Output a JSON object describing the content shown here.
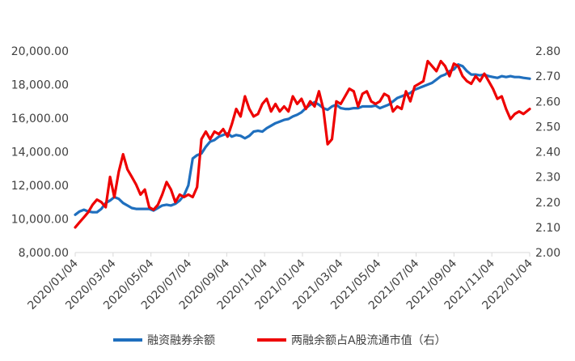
{
  "chart_data": {
    "type": "line",
    "title": "",
    "left_axis": {
      "ylim": [
        8000,
        20000
      ],
      "ticks": [
        8000,
        10000,
        12000,
        14000,
        16000,
        18000,
        20000
      ],
      "tick_labels": [
        "8,000.00",
        "10,000.00",
        "12,000.00",
        "14,000.00",
        "16,000.00",
        "18,000.00",
        "20,000.00"
      ]
    },
    "right_axis": {
      "ylim": [
        2.0,
        2.8
      ],
      "ticks": [
        2.0,
        2.1,
        2.2,
        2.3,
        2.4,
        2.5,
        2.6,
        2.7,
        2.8
      ],
      "tick_labels": [
        "2.00",
        "2.10",
        "2.20",
        "2.30",
        "2.40",
        "2.50",
        "2.60",
        "2.70",
        "2.80"
      ]
    },
    "x_axis": {
      "range": [
        "2020-01-04",
        "2022-01-04"
      ],
      "tick_labels": [
        "2020/01/04",
        "2020/03/04",
        "2020/05/04",
        "2020/07/04",
        "2020/09/04",
        "2020/11/04",
        "2021/01/04",
        "2021/03/04",
        "2021/05/04",
        "2021/07/04",
        "2021/09/04",
        "2021/11/04",
        "2022/01/04"
      ]
    },
    "legend": {
      "placement": "bottom"
    },
    "grid": false,
    "series": [
      {
        "name": "融资融券余额",
        "axis": "left",
        "color": "#1f6fbe",
        "points": [
          [
            "2020-01-04",
            10250
          ],
          [
            "2020-01-11",
            10450
          ],
          [
            "2020-01-18",
            10550
          ],
          [
            "2020-01-25",
            10450
          ],
          [
            "2020-02-01",
            10400
          ],
          [
            "2020-02-08",
            10400
          ],
          [
            "2020-02-15",
            10600
          ],
          [
            "2020-02-22",
            10950
          ],
          [
            "2020-02-29",
            11100
          ],
          [
            "2020-03-07",
            11300
          ],
          [
            "2020-03-14",
            11200
          ],
          [
            "2020-03-21",
            10950
          ],
          [
            "2020-03-28",
            10800
          ],
          [
            "2020-04-04",
            10650
          ],
          [
            "2020-04-11",
            10600
          ],
          [
            "2020-04-18",
            10600
          ],
          [
            "2020-04-25",
            10600
          ],
          [
            "2020-05-02",
            10600
          ],
          [
            "2020-05-09",
            10500
          ],
          [
            "2020-05-16",
            10650
          ],
          [
            "2020-05-23",
            10800
          ],
          [
            "2020-05-30",
            10850
          ],
          [
            "2020-06-06",
            10800
          ],
          [
            "2020-06-13",
            10900
          ],
          [
            "2020-06-20",
            11100
          ],
          [
            "2020-06-27",
            11400
          ],
          [
            "2020-07-04",
            12000
          ],
          [
            "2020-07-11",
            13600
          ],
          [
            "2020-07-18",
            13800
          ],
          [
            "2020-07-25",
            13900
          ],
          [
            "2020-08-01",
            14300
          ],
          [
            "2020-08-08",
            14600
          ],
          [
            "2020-08-15",
            14700
          ],
          [
            "2020-08-22",
            14900
          ],
          [
            "2020-08-29",
            15000
          ],
          [
            "2020-09-05",
            15100
          ],
          [
            "2020-09-12",
            14900
          ],
          [
            "2020-09-19",
            15000
          ],
          [
            "2020-09-26",
            14950
          ],
          [
            "2020-10-03",
            14800
          ],
          [
            "2020-10-10",
            14950
          ],
          [
            "2020-10-17",
            15200
          ],
          [
            "2020-10-24",
            15250
          ],
          [
            "2020-10-31",
            15200
          ],
          [
            "2020-11-07",
            15400
          ],
          [
            "2020-11-14",
            15550
          ],
          [
            "2020-11-21",
            15700
          ],
          [
            "2020-11-28",
            15800
          ],
          [
            "2020-12-05",
            15900
          ],
          [
            "2020-12-12",
            15950
          ],
          [
            "2020-12-19",
            16100
          ],
          [
            "2020-12-26",
            16200
          ],
          [
            "2021-01-02",
            16350
          ],
          [
            "2021-01-09",
            16600
          ],
          [
            "2021-01-16",
            16800
          ],
          [
            "2021-01-23",
            16950
          ],
          [
            "2021-01-30",
            16800
          ],
          [
            "2021-02-06",
            16600
          ],
          [
            "2021-02-13",
            16500
          ],
          [
            "2021-02-20",
            16700
          ],
          [
            "2021-02-27",
            16800
          ],
          [
            "2021-03-06",
            16600
          ],
          [
            "2021-03-13",
            16550
          ],
          [
            "2021-03-20",
            16550
          ],
          [
            "2021-03-27",
            16600
          ],
          [
            "2021-04-03",
            16600
          ],
          [
            "2021-04-10",
            16700
          ],
          [
            "2021-04-17",
            16700
          ],
          [
            "2021-04-24",
            16700
          ],
          [
            "2021-05-01",
            16750
          ],
          [
            "2021-05-08",
            16600
          ],
          [
            "2021-05-15",
            16700
          ],
          [
            "2021-05-22",
            16800
          ],
          [
            "2021-05-29",
            17000
          ],
          [
            "2021-06-05",
            17200
          ],
          [
            "2021-06-12",
            17300
          ],
          [
            "2021-06-19",
            17400
          ],
          [
            "2021-06-26",
            17500
          ],
          [
            "2021-07-03",
            17700
          ],
          [
            "2021-07-10",
            17800
          ],
          [
            "2021-07-17",
            17900
          ],
          [
            "2021-07-24",
            18000
          ],
          [
            "2021-07-31",
            18100
          ],
          [
            "2021-08-07",
            18300
          ],
          [
            "2021-08-14",
            18500
          ],
          [
            "2021-08-21",
            18600
          ],
          [
            "2021-08-28",
            18800
          ],
          [
            "2021-09-04",
            18900
          ],
          [
            "2021-09-11",
            19200
          ],
          [
            "2021-09-18",
            19100
          ],
          [
            "2021-09-25",
            18800
          ],
          [
            "2021-10-02",
            18600
          ],
          [
            "2021-10-09",
            18600
          ],
          [
            "2021-10-16",
            18550
          ],
          [
            "2021-10-23",
            18600
          ],
          [
            "2021-10-30",
            18500
          ],
          [
            "2021-11-06",
            18450
          ],
          [
            "2021-11-13",
            18400
          ],
          [
            "2021-11-20",
            18500
          ],
          [
            "2021-11-27",
            18450
          ],
          [
            "2021-12-04",
            18500
          ],
          [
            "2021-12-11",
            18450
          ],
          [
            "2021-12-18",
            18450
          ],
          [
            "2021-12-25",
            18400
          ],
          [
            "2022-01-04",
            18350
          ]
        ]
      },
      {
        "name": "两融余额占A股流通市值（右）",
        "axis": "right",
        "color": "#ee0000",
        "points": [
          [
            "2020-01-04",
            2.1
          ],
          [
            "2020-01-11",
            2.12
          ],
          [
            "2020-01-18",
            2.14
          ],
          [
            "2020-01-25",
            2.16
          ],
          [
            "2020-02-01",
            2.19
          ],
          [
            "2020-02-08",
            2.21
          ],
          [
            "2020-02-15",
            2.2
          ],
          [
            "2020-02-22",
            2.18
          ],
          [
            "2020-02-29",
            2.3
          ],
          [
            "2020-03-07",
            2.22
          ],
          [
            "2020-03-14",
            2.32
          ],
          [
            "2020-03-21",
            2.39
          ],
          [
            "2020-03-28",
            2.33
          ],
          [
            "2020-04-04",
            2.3
          ],
          [
            "2020-04-11",
            2.27
          ],
          [
            "2020-04-18",
            2.23
          ],
          [
            "2020-04-25",
            2.25
          ],
          [
            "2020-05-02",
            2.18
          ],
          [
            "2020-05-09",
            2.17
          ],
          [
            "2020-05-16",
            2.19
          ],
          [
            "2020-05-23",
            2.23
          ],
          [
            "2020-05-30",
            2.28
          ],
          [
            "2020-06-06",
            2.25
          ],
          [
            "2020-06-13",
            2.2
          ],
          [
            "2020-06-20",
            2.23
          ],
          [
            "2020-06-27",
            2.22
          ],
          [
            "2020-07-04",
            2.23
          ],
          [
            "2020-07-11",
            2.22
          ],
          [
            "2020-07-18",
            2.26
          ],
          [
            "2020-07-25",
            2.45
          ],
          [
            "2020-08-01",
            2.48
          ],
          [
            "2020-08-08",
            2.45
          ],
          [
            "2020-08-15",
            2.48
          ],
          [
            "2020-08-22",
            2.47
          ],
          [
            "2020-08-29",
            2.49
          ],
          [
            "2020-09-05",
            2.46
          ],
          [
            "2020-09-12",
            2.51
          ],
          [
            "2020-09-19",
            2.57
          ],
          [
            "2020-09-26",
            2.54
          ],
          [
            "2020-10-03",
            2.62
          ],
          [
            "2020-10-10",
            2.57
          ],
          [
            "2020-10-17",
            2.54
          ],
          [
            "2020-10-24",
            2.55
          ],
          [
            "2020-10-31",
            2.59
          ],
          [
            "2020-11-07",
            2.61
          ],
          [
            "2020-11-14",
            2.56
          ],
          [
            "2020-11-21",
            2.59
          ],
          [
            "2020-11-28",
            2.56
          ],
          [
            "2020-12-05",
            2.58
          ],
          [
            "2020-12-12",
            2.56
          ],
          [
            "2020-12-19",
            2.62
          ],
          [
            "2020-12-26",
            2.59
          ],
          [
            "2021-01-02",
            2.61
          ],
          [
            "2021-01-09",
            2.57
          ],
          [
            "2021-01-16",
            2.6
          ],
          [
            "2021-01-23",
            2.58
          ],
          [
            "2021-01-30",
            2.64
          ],
          [
            "2021-02-06",
            2.57
          ],
          [
            "2021-02-13",
            2.43
          ],
          [
            "2021-02-20",
            2.45
          ],
          [
            "2021-02-27",
            2.6
          ],
          [
            "2021-03-06",
            2.59
          ],
          [
            "2021-03-13",
            2.62
          ],
          [
            "2021-03-20",
            2.65
          ],
          [
            "2021-03-27",
            2.64
          ],
          [
            "2021-04-03",
            2.58
          ],
          [
            "2021-04-10",
            2.63
          ],
          [
            "2021-04-17",
            2.64
          ],
          [
            "2021-04-24",
            2.6
          ],
          [
            "2021-05-01",
            2.59
          ],
          [
            "2021-05-08",
            2.6
          ],
          [
            "2021-05-15",
            2.63
          ],
          [
            "2021-05-22",
            2.62
          ],
          [
            "2021-05-29",
            2.56
          ],
          [
            "2021-06-05",
            2.58
          ],
          [
            "2021-06-12",
            2.57
          ],
          [
            "2021-06-19",
            2.64
          ],
          [
            "2021-06-26",
            2.6
          ],
          [
            "2021-07-03",
            2.66
          ],
          [
            "2021-07-10",
            2.67
          ],
          [
            "2021-07-17",
            2.68
          ],
          [
            "2021-07-24",
            2.76
          ],
          [
            "2021-07-31",
            2.74
          ],
          [
            "2021-08-07",
            2.72
          ],
          [
            "2021-08-14",
            2.76
          ],
          [
            "2021-08-21",
            2.74
          ],
          [
            "2021-08-28",
            2.7
          ],
          [
            "2021-09-04",
            2.75
          ],
          [
            "2021-09-11",
            2.74
          ],
          [
            "2021-09-18",
            2.7
          ],
          [
            "2021-09-25",
            2.68
          ],
          [
            "2021-10-02",
            2.67
          ],
          [
            "2021-10-09",
            2.7
          ],
          [
            "2021-10-16",
            2.68
          ],
          [
            "2021-10-23",
            2.71
          ],
          [
            "2021-10-30",
            2.68
          ],
          [
            "2021-11-06",
            2.65
          ],
          [
            "2021-11-13",
            2.61
          ],
          [
            "2021-11-20",
            2.62
          ],
          [
            "2021-11-27",
            2.57
          ],
          [
            "2021-12-04",
            2.53
          ],
          [
            "2021-12-11",
            2.55
          ],
          [
            "2021-12-18",
            2.56
          ],
          [
            "2021-12-25",
            2.55
          ],
          [
            "2022-01-04",
            2.57
          ]
        ]
      }
    ]
  }
}
